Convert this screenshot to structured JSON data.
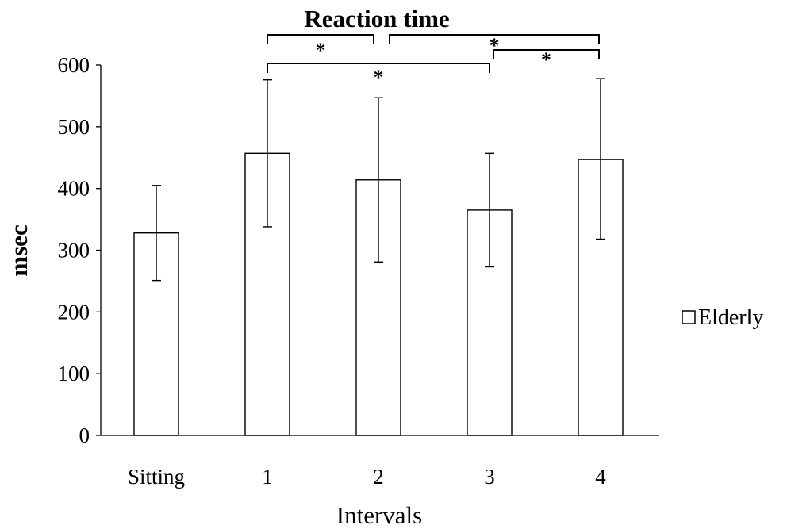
{
  "chart_data": {
    "type": "bar",
    "title": "Reaction time",
    "xlabel": "Intervals",
    "ylabel": "msec",
    "categories": [
      "Sitting",
      "1",
      "2",
      "3",
      "4"
    ],
    "series": [
      {
        "name": "Elderly",
        "values": [
          328,
          457,
          414,
          365,
          447
        ],
        "error_low": [
          251,
          338,
          281,
          273,
          318
        ],
        "error_high": [
          405,
          576,
          547,
          457,
          578
        ]
      }
    ],
    "ylim": [
      0,
      600
    ],
    "yticks": [
      0,
      100,
      200,
      300,
      400,
      500,
      600
    ],
    "grid": false,
    "legend_position": "right",
    "bar_fill": "#ffffff",
    "bar_stroke": "#000000",
    "significance": [
      {
        "from": "1",
        "to": "2",
        "label": "*"
      },
      {
        "from": "2",
        "to": "4",
        "label": "*"
      },
      {
        "from": "1",
        "to": "3",
        "label": "*"
      },
      {
        "from": "3",
        "to": "4",
        "label": "*"
      }
    ]
  }
}
